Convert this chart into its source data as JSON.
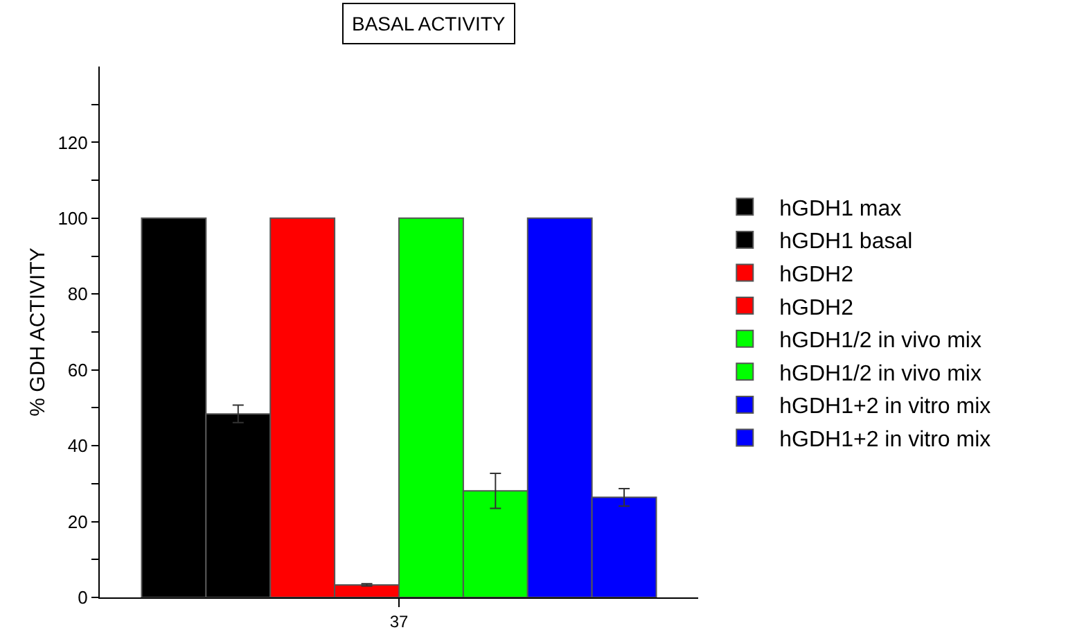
{
  "chart_data": {
    "type": "bar",
    "title": "BASAL ACTIVITY",
    "ylabel": "% GDH ACTIVITY",
    "categories": [
      "37"
    ],
    "series": [
      {
        "name": "hGDH1 max",
        "color": "#000000",
        "values": [
          100
        ]
      },
      {
        "name": "hGDH1 basal",
        "color": "#000000",
        "values": [
          48.4
        ],
        "errors": [
          2.3
        ]
      },
      {
        "name": "hGDH2",
        "color": "#ff0000",
        "values": [
          100
        ]
      },
      {
        "name": "hGDH2",
        "color": "#ff0000",
        "values": [
          3.3
        ],
        "errors": [
          0.3
        ]
      },
      {
        "name": "hGDH1/2 in vivo mix",
        "color": "#00ff00",
        "values": [
          100
        ]
      },
      {
        "name": "hGDH1/2 in vivo mix",
        "color": "#00ff00",
        "values": [
          28.1
        ],
        "errors": [
          4.6
        ]
      },
      {
        "name": "hGDH1+2 in vitro mix",
        "color": "#0000ff",
        "values": [
          100
        ]
      },
      {
        "name": "hGDH1+2 in vitro mix",
        "color": "#0000ff",
        "values": [
          26.4
        ],
        "errors": [
          2.3
        ]
      }
    ],
    "ylim": [
      0,
      140
    ],
    "yticks": [
      0,
      {
        "value": 10,
        "label": null
      },
      20,
      {
        "value": 30,
        "label": null
      },
      40,
      {
        "value": 50,
        "label": null
      },
      60,
      {
        "value": 70,
        "label": null
      },
      80,
      {
        "value": 90,
        "label": null
      },
      100,
      {
        "value": 110,
        "label": null
      },
      120,
      {
        "value": 130,
        "label": null
      }
    ],
    "grid": false,
    "legend": "right"
  }
}
